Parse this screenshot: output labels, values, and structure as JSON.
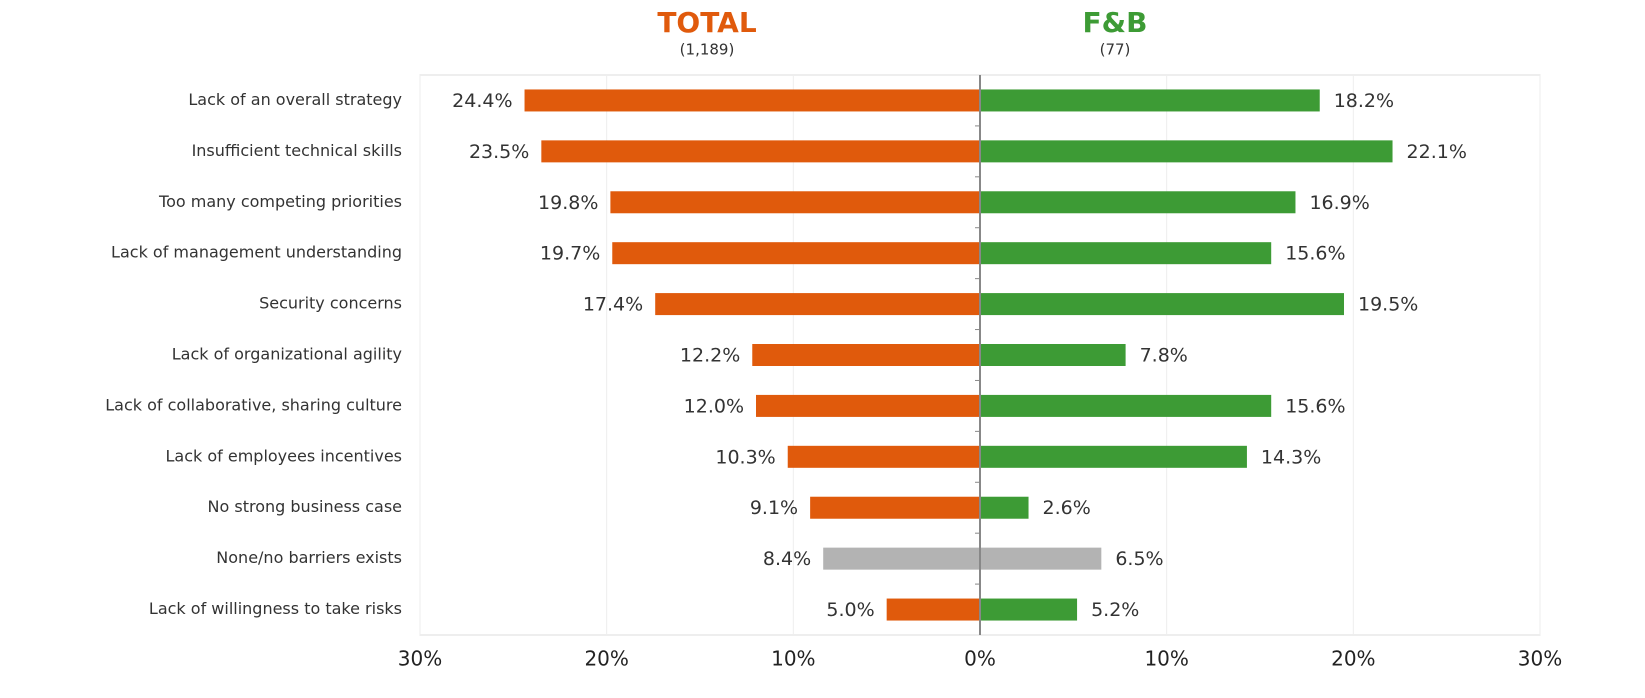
{
  "chart_data": {
    "type": "butterfly",
    "categories": [
      "Lack of an overall strategy",
      "Insufficient technical skills",
      "Too many competing priorities",
      "Lack of management understanding",
      "Security concerns",
      "Lack of organizational agility",
      "Lack of collaborative, sharing culture",
      "Lack of employees incentives",
      "No strong business case",
      "None/no barriers exists",
      "Lack of willingness to take risks"
    ],
    "series": [
      {
        "name": "TOTAL",
        "base": "(1,189)",
        "color": "#e05a0c",
        "side": "left",
        "colors": [
          "#e05a0c",
          "#e05a0c",
          "#e05a0c",
          "#e05a0c",
          "#e05a0c",
          "#e05a0c",
          "#e05a0c",
          "#e05a0c",
          "#e05a0c",
          "#b3b3b3",
          "#e05a0c"
        ],
        "values": [
          24.4,
          23.5,
          19.8,
          19.7,
          17.4,
          12.2,
          12.0,
          10.3,
          9.1,
          8.4,
          5.0
        ],
        "value_labels": [
          "24.4%",
          "23.5%",
          "19.8%",
          "19.7%",
          "17.4%",
          "12.2%",
          "12.0%",
          "10.3%",
          "9.1%",
          "8.4%",
          "5.0%"
        ]
      },
      {
        "name": "F&B",
        "base": "(77)",
        "color": "#3d9b35",
        "side": "right",
        "colors": [
          "#3d9b35",
          "#3d9b35",
          "#3d9b35",
          "#3d9b35",
          "#3d9b35",
          "#3d9b35",
          "#3d9b35",
          "#3d9b35",
          "#3d9b35",
          "#b3b3b3",
          "#3d9b35"
        ],
        "values": [
          18.2,
          22.1,
          16.9,
          15.6,
          19.5,
          7.8,
          15.6,
          14.3,
          2.6,
          6.5,
          5.2
        ],
        "value_labels": [
          "18.2%",
          "22.1%",
          "16.9%",
          "15.6%",
          "19.5%",
          "7.8%",
          "15.6%",
          "14.3%",
          "2.6%",
          "6.5%",
          "5.2%"
        ]
      }
    ],
    "xlim": [
      0,
      30
    ],
    "xticks": [
      {
        "value": 0,
        "label": "0%"
      },
      {
        "value": 10,
        "label": "10%"
      },
      {
        "value": 20,
        "label": "20%"
      },
      {
        "value": 30,
        "label": "30%"
      }
    ],
    "grid": true
  }
}
